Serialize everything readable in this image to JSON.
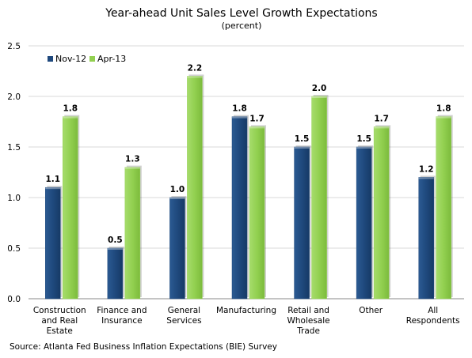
{
  "chart_data": {
    "type": "bar",
    "title": "Year-ahead Unit Sales Level Growth Expectations",
    "subtitle": "(percent)",
    "categories": [
      [
        "Construction",
        "and Real",
        "Estate"
      ],
      [
        "Finance and",
        "Insurance"
      ],
      [
        "General",
        "Services"
      ],
      [
        "Manufacturing"
      ],
      [
        "Retail and",
        "Wholesale",
        "Trade"
      ],
      [
        "Other"
      ],
      [
        "All",
        "Respondents"
      ]
    ],
    "series": [
      {
        "name": "Nov-12",
        "color": "#1f497d",
        "values": [
          1.1,
          0.5,
          1.0,
          1.8,
          1.5,
          1.5,
          1.2
        ],
        "labels": [
          "1.1",
          "0.5",
          "1.0",
          "1.8",
          "1.5",
          "1.5",
          "1.2"
        ]
      },
      {
        "name": "Apr-13",
        "color": "#92d050",
        "values": [
          1.8,
          1.3,
          2.2,
          1.7,
          2.0,
          1.7,
          1.8
        ],
        "labels": [
          "1.8",
          "1.3",
          "2.2",
          "1.7",
          "2.0",
          "1.7",
          "1.8"
        ]
      }
    ],
    "ylim": [
      0,
      2.5
    ],
    "yticks": [
      "0.0",
      "0.5",
      "1.0",
      "1.5",
      "2.0",
      "2.5"
    ],
    "grid": true,
    "legend_position": "top-left",
    "xlabel": "",
    "ylabel": ""
  },
  "source": "Source: Atlanta Fed Business Inflation Expectations (BIE) Survey"
}
